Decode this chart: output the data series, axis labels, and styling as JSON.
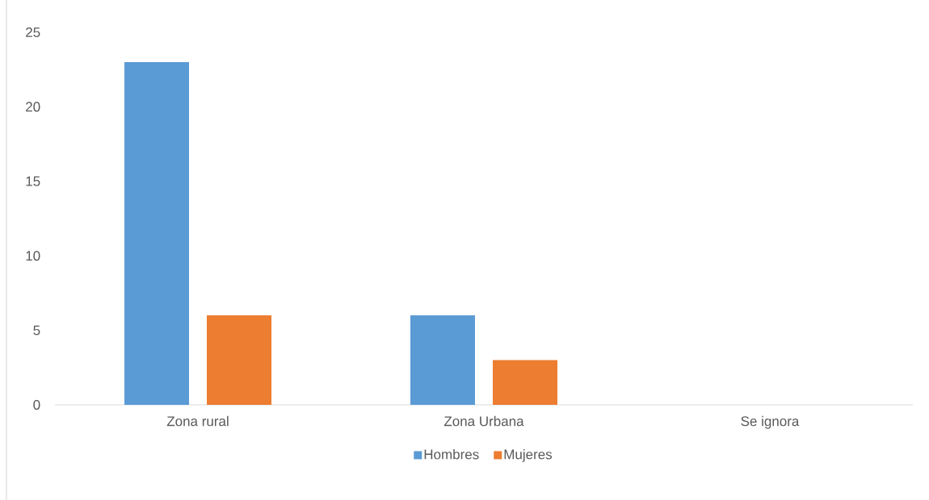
{
  "chart_data": {
    "type": "bar",
    "categories": [
      "Zona rural",
      "Zona Urbana",
      "Se ignora"
    ],
    "series": [
      {
        "name": "Hombres",
        "color": "#5b9bd5",
        "values": [
          23,
          6,
          0
        ]
      },
      {
        "name": "Mujeres",
        "color": "#ed7d31",
        "values": [
          6,
          3,
          0
        ]
      }
    ],
    "ylim": [
      0,
      25
    ],
    "yticks": [
      0,
      5,
      10,
      15,
      20,
      25
    ],
    "legend": "bottom"
  }
}
